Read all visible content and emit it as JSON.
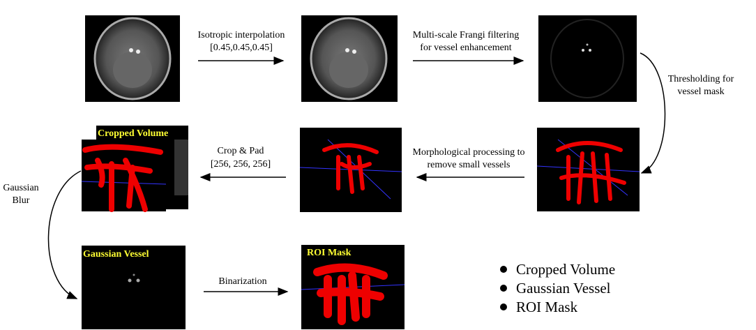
{
  "edges": [
    {
      "lines": [
        "Isotropic interpolation",
        "[0.45,0.45,0.45]"
      ]
    },
    {
      "lines": [
        "Multi-scale Frangi filtering",
        "for vessel enhancement"
      ]
    },
    {
      "lines": [
        "Thresholding for",
        "vessel mask"
      ]
    },
    {
      "lines": [
        "Morphological processing to",
        "remove small vessels"
      ]
    },
    {
      "lines": [
        "Crop & Pad",
        "[256, 256, 256]"
      ]
    },
    {
      "lines": [
        "Gaussian",
        "Blur"
      ]
    },
    {
      "lines": [
        "Binarization"
      ]
    }
  ],
  "image_labels": [
    "Cropped Volume",
    "Gaussian Vessel",
    "ROI Mask"
  ],
  "legend": [
    "Cropped Volume",
    "Gaussian Vessel",
    "ROI Mask"
  ]
}
